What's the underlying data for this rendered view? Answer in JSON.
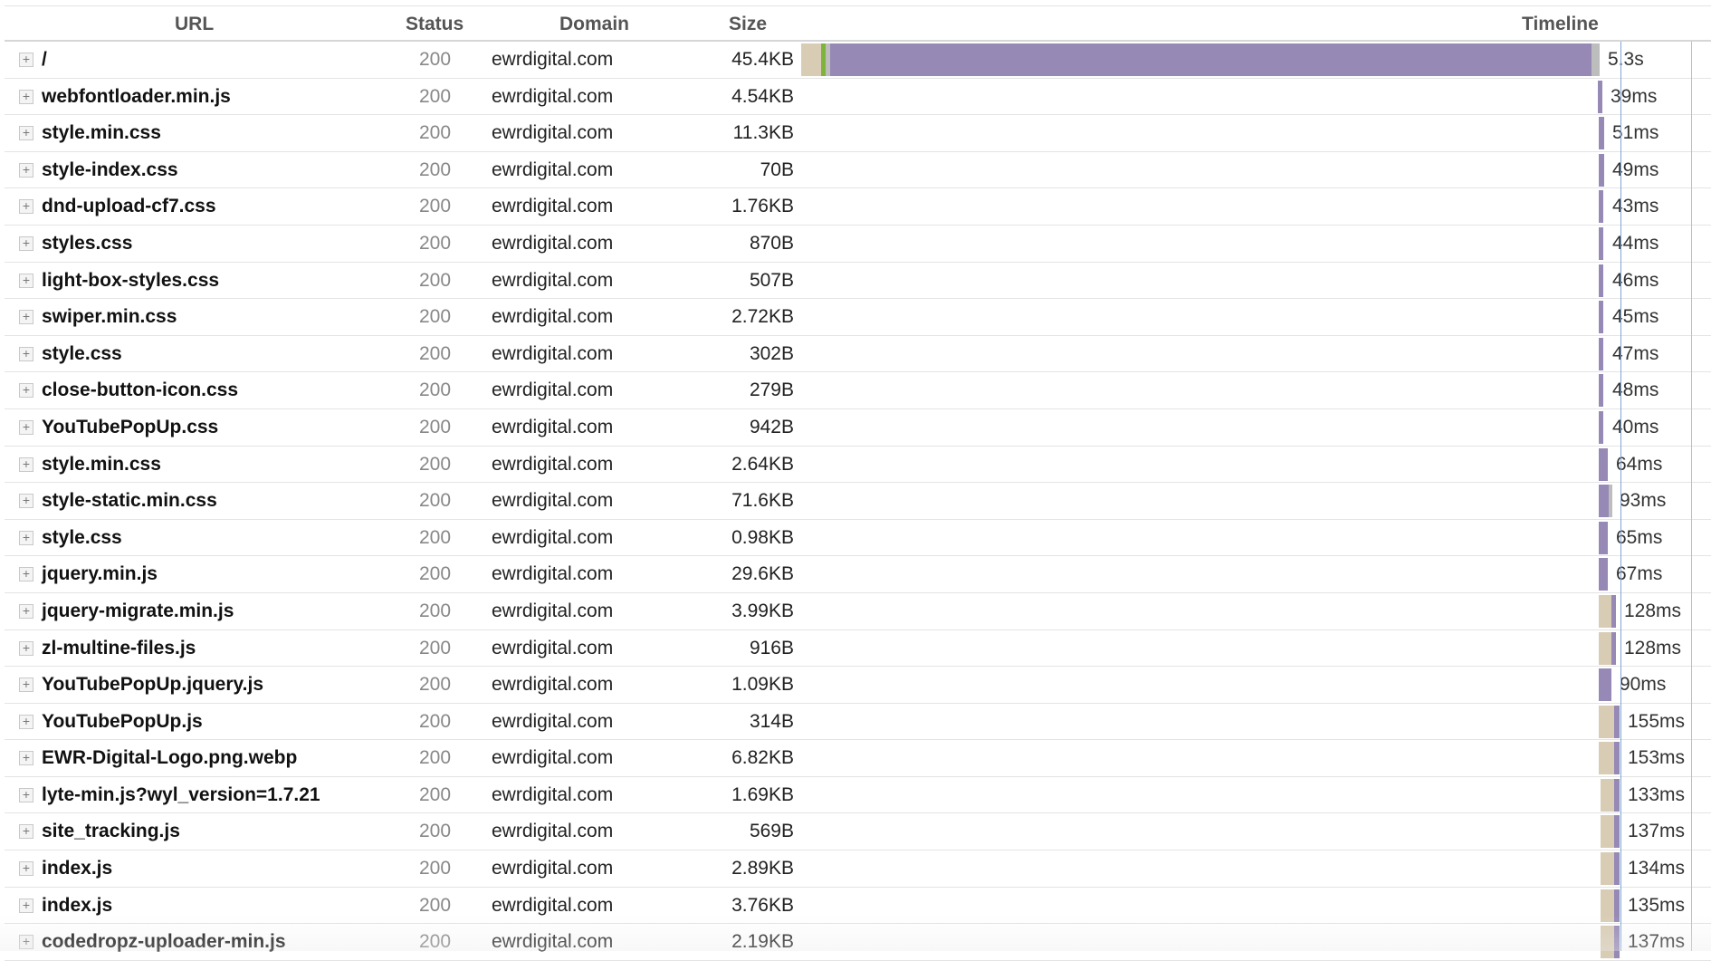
{
  "columns": {
    "url": "URL",
    "status": "Status",
    "domain": "Domain",
    "size": "Size",
    "timeline": "Timeline"
  },
  "icons": {
    "expand": "plus-expand-icon"
  },
  "colors": {
    "wait": "#d8ccb4",
    "receive": "#9689b6",
    "first_byte": "#7fb33c",
    "marker_blue": "#7fa5d6",
    "marker_cyan": "#98cbe0"
  },
  "requests": [
    {
      "expand": "+",
      "url": "/",
      "status": "200",
      "domain": "ewrdigital.com",
      "size": "45.4KB",
      "time": "5.3s"
    },
    {
      "expand": "+",
      "url": "webfontloader.min.js",
      "status": "200",
      "domain": "ewrdigital.com",
      "size": "4.54KB",
      "time": "39ms"
    },
    {
      "expand": "+",
      "url": "style.min.css",
      "status": "200",
      "domain": "ewrdigital.com",
      "size": "11.3KB",
      "time": "51ms"
    },
    {
      "expand": "+",
      "url": "style-index.css",
      "status": "200",
      "domain": "ewrdigital.com",
      "size": "70B",
      "time": "49ms"
    },
    {
      "expand": "+",
      "url": "dnd-upload-cf7.css",
      "status": "200",
      "domain": "ewrdigital.com",
      "size": "1.76KB",
      "time": "43ms"
    },
    {
      "expand": "+",
      "url": "styles.css",
      "status": "200",
      "domain": "ewrdigital.com",
      "size": "870B",
      "time": "44ms"
    },
    {
      "expand": "+",
      "url": "light-box-styles.css",
      "status": "200",
      "domain": "ewrdigital.com",
      "size": "507B",
      "time": "46ms"
    },
    {
      "expand": "+",
      "url": "swiper.min.css",
      "status": "200",
      "domain": "ewrdigital.com",
      "size": "2.72KB",
      "time": "45ms"
    },
    {
      "expand": "+",
      "url": "style.css",
      "status": "200",
      "domain": "ewrdigital.com",
      "size": "302B",
      "time": "47ms"
    },
    {
      "expand": "+",
      "url": "close-button-icon.css",
      "status": "200",
      "domain": "ewrdigital.com",
      "size": "279B",
      "time": "48ms"
    },
    {
      "expand": "+",
      "url": "YouTubePopUp.css",
      "status": "200",
      "domain": "ewrdigital.com",
      "size": "942B",
      "time": "40ms"
    },
    {
      "expand": "+",
      "url": "style.min.css",
      "status": "200",
      "domain": "ewrdigital.com",
      "size": "2.64KB",
      "time": "64ms"
    },
    {
      "expand": "+",
      "url": "style-static.min.css",
      "status": "200",
      "domain": "ewrdigital.com",
      "size": "71.6KB",
      "time": "93ms"
    },
    {
      "expand": "+",
      "url": "style.css",
      "status": "200",
      "domain": "ewrdigital.com",
      "size": "0.98KB",
      "time": "65ms"
    },
    {
      "expand": "+",
      "url": "jquery.min.js",
      "status": "200",
      "domain": "ewrdigital.com",
      "size": "29.6KB",
      "time": "67ms"
    },
    {
      "expand": "+",
      "url": "jquery-migrate.min.js",
      "status": "200",
      "domain": "ewrdigital.com",
      "size": "3.99KB",
      "time": "128ms"
    },
    {
      "expand": "+",
      "url": "zl-multine-files.js",
      "status": "200",
      "domain": "ewrdigital.com",
      "size": "916B",
      "time": "128ms"
    },
    {
      "expand": "+",
      "url": "YouTubePopUp.jquery.js",
      "status": "200",
      "domain": "ewrdigital.com",
      "size": "1.09KB",
      "time": "90ms"
    },
    {
      "expand": "+",
      "url": "YouTubePopUp.js",
      "status": "200",
      "domain": "ewrdigital.com",
      "size": "314B",
      "time": "155ms"
    },
    {
      "expand": "+",
      "url": "EWR-Digital-Logo.png.webp",
      "status": "200",
      "domain": "ewrdigital.com",
      "size": "6.82KB",
      "time": "153ms"
    },
    {
      "expand": "+",
      "url": "lyte-min.js?wyl_version=1.7.21",
      "status": "200",
      "domain": "ewrdigital.com",
      "size": "1.69KB",
      "time": "133ms"
    },
    {
      "expand": "+",
      "url": "site_tracking.js",
      "status": "200",
      "domain": "ewrdigital.com",
      "size": "569B",
      "time": "137ms"
    },
    {
      "expand": "+",
      "url": "index.js",
      "status": "200",
      "domain": "ewrdigital.com",
      "size": "2.89KB",
      "time": "134ms"
    },
    {
      "expand": "+",
      "url": "index.js",
      "status": "200",
      "domain": "ewrdigital.com",
      "size": "3.76KB",
      "time": "135ms"
    },
    {
      "expand": "+",
      "url": "codedropz-uploader-min.js",
      "status": "200",
      "domain": "ewrdigital.com",
      "size": "2.19KB",
      "time": "137ms"
    }
  ]
}
